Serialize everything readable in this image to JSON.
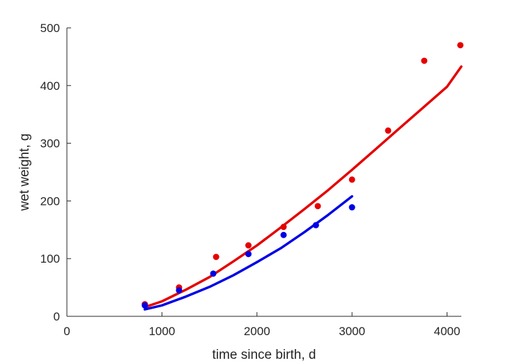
{
  "chart_data": {
    "type": "scatter",
    "xlabel": "time since birth, d",
    "ylabel": "wet weight, g",
    "xlim": [
      0,
      4150
    ],
    "ylim": [
      0,
      500
    ],
    "xticks": [
      0,
      1000,
      2000,
      3000,
      4000
    ],
    "yticks": [
      0,
      100,
      200,
      300,
      400,
      500
    ],
    "grid": false,
    "legend": "none",
    "series": [
      {
        "color": "#e50000",
        "points": [
          {
            "x": 820,
            "y": 21
          },
          {
            "x": 1180,
            "y": 50
          },
          {
            "x": 1570,
            "y": 103
          },
          {
            "x": 1910,
            "y": 123
          },
          {
            "x": 2280,
            "y": 155
          },
          {
            "x": 2640,
            "y": 191
          },
          {
            "x": 3000,
            "y": 237
          },
          {
            "x": 3380,
            "y": 322
          },
          {
            "x": 3760,
            "y": 443
          },
          {
            "x": 4140,
            "y": 470
          }
        ],
        "fit": [
          {
            "x": 820,
            "y": 16
          },
          {
            "x": 1000,
            "y": 26
          },
          {
            "x": 1250,
            "y": 46
          },
          {
            "x": 1500,
            "y": 68
          },
          {
            "x": 1750,
            "y": 95
          },
          {
            "x": 2000,
            "y": 123
          },
          {
            "x": 2250,
            "y": 154
          },
          {
            "x": 2500,
            "y": 186
          },
          {
            "x": 2750,
            "y": 219
          },
          {
            "x": 3000,
            "y": 254
          },
          {
            "x": 3250,
            "y": 290
          },
          {
            "x": 3500,
            "y": 326
          },
          {
            "x": 3750,
            "y": 362
          },
          {
            "x": 4000,
            "y": 398
          },
          {
            "x": 4150,
            "y": 433
          }
        ]
      },
      {
        "color": "#0000e5",
        "points": [
          {
            "x": 820,
            "y": 19
          },
          {
            "x": 1180,
            "y": 45
          },
          {
            "x": 1540,
            "y": 74
          },
          {
            "x": 1910,
            "y": 108
          },
          {
            "x": 2280,
            "y": 141
          },
          {
            "x": 2620,
            "y": 158
          },
          {
            "x": 3000,
            "y": 189
          }
        ],
        "fit": [
          {
            "x": 820,
            "y": 12
          },
          {
            "x": 1000,
            "y": 19
          },
          {
            "x": 1250,
            "y": 34
          },
          {
            "x": 1500,
            "y": 51
          },
          {
            "x": 1750,
            "y": 71
          },
          {
            "x": 2000,
            "y": 94
          },
          {
            "x": 2250,
            "y": 118
          },
          {
            "x": 2500,
            "y": 146
          },
          {
            "x": 2750,
            "y": 176
          },
          {
            "x": 3000,
            "y": 208
          }
        ]
      }
    ]
  }
}
